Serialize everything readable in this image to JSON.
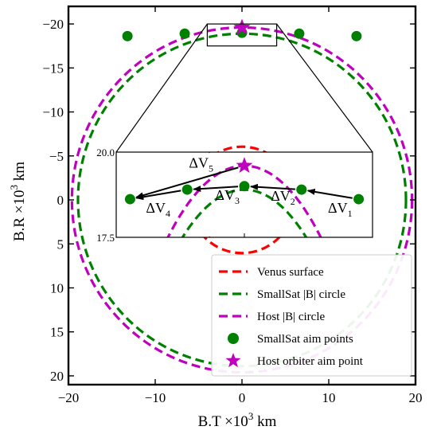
{
  "chart_data": {
    "type": "scatter",
    "xlabel": {
      "base": "B.T ×10",
      "sup": "3",
      "tail": " km"
    },
    "ylabel": {
      "base": "B.R ×10",
      "sup": "3",
      "tail": " km"
    },
    "xlim": [
      -20,
      20
    ],
    "ylim": [
      21,
      -22
    ],
    "y_inverted": true,
    "xticks": [
      -20,
      -10,
      0,
      10,
      20
    ],
    "xtick_labels": [
      "−20",
      "−10",
      "0",
      "10",
      "20"
    ],
    "yticks": [
      -20,
      -15,
      -10,
      -5,
      0,
      5,
      10,
      15,
      20
    ],
    "ytick_labels": [
      "−20",
      "−15",
      "−10",
      "−5",
      "0",
      "5",
      "10",
      "15",
      "20"
    ],
    "series": [
      {
        "name": "Venus surface",
        "kind": "circle",
        "radius": 6.05,
        "color": "#ff0000",
        "style": "dashed"
      },
      {
        "name": "SmallSat |B| circle",
        "kind": "circle",
        "radius": 18.9,
        "color": "#008000",
        "style": "dashed"
      },
      {
        "name": "Host |B| circle",
        "kind": "circle",
        "radius": 19.6,
        "color": "#bf00bf",
        "style": "dashed"
      },
      {
        "name": "SmallSat aim points",
        "kind": "points",
        "marker": "circle",
        "color": "#008000",
        "x": [
          -13.2,
          -6.6,
          0,
          6.6,
          13.2
        ],
        "y": [
          -18.62,
          -18.9,
          -19.0,
          -18.9,
          -18.62
        ]
      },
      {
        "name": "Host orbiter aim point",
        "kind": "points",
        "marker": "star",
        "color": "#bf00bf",
        "x": [
          0
        ],
        "y": [
          -19.6
        ]
      }
    ],
    "inset": {
      "source_box": {
        "x": [
          -4,
          4
        ],
        "y": [
          -20.0,
          -17.5
        ]
      },
      "xlim": [
        -14.8,
        14.8
      ],
      "ylim": [
        -20.0,
        -17.5
      ],
      "ytick_labels": [
        "20.0",
        "17.5"
      ],
      "delta_v_labels": [
        {
          "base": "ΔV",
          "sub": "1"
        },
        {
          "base": "ΔV",
          "sub": "2"
        },
        {
          "base": "ΔV",
          "sub": "3"
        },
        {
          "base": "ΔV",
          "sub": "4"
        },
        {
          "base": "ΔV",
          "sub": "5"
        }
      ]
    },
    "legend": {
      "placement": "lower-right"
    }
  },
  "colors": {
    "venus": "#ff0000",
    "smallsat": "#008000",
    "host": "#bf00bf",
    "axes": "#000000"
  }
}
